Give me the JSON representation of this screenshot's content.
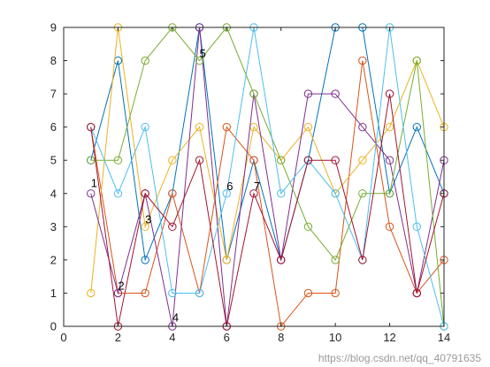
{
  "watermark": "https://blog.csdn.net/qq_40791635",
  "chart_data": {
    "type": "line",
    "marker": "open-circle",
    "grid": false,
    "xlim": [
      0,
      14
    ],
    "ylim": [
      0,
      9
    ],
    "x_ticks": [
      0,
      2,
      4,
      6,
      8,
      10,
      12,
      14
    ],
    "y_ticks": [
      0,
      1,
      2,
      3,
      4,
      5,
      6,
      7,
      8,
      9
    ],
    "x": [
      1,
      2,
      3,
      4,
      5,
      6,
      7,
      8,
      9,
      10,
      11,
      12,
      13,
      14
    ],
    "series": [
      {
        "color": "#0072BD",
        "values": [
          5,
          8,
          2,
          4,
          9,
          2,
          5,
          2,
          5,
          9,
          9,
          4,
          6,
          4
        ]
      },
      {
        "color": "#D95319",
        "values": [
          6,
          1,
          1,
          4,
          1,
          6,
          5,
          0,
          1,
          1,
          8,
          3,
          1,
          2
        ]
      },
      {
        "color": "#EDB120",
        "values": [
          1,
          9,
          3,
          5,
          6,
          2,
          6,
          5,
          6,
          4,
          5,
          6,
          8,
          6
        ]
      },
      {
        "color": "#7E2F8E",
        "values": [
          4,
          1,
          4,
          0,
          9,
          0,
          7,
          2,
          7,
          7,
          6,
          5,
          1,
          5
        ]
      },
      {
        "color": "#77AC30",
        "values": [
          5,
          5,
          8,
          9,
          8,
          9,
          7,
          5,
          3,
          2,
          4,
          4,
          8,
          0
        ]
      },
      {
        "color": "#4DBEEE",
        "values": [
          6,
          4,
          6,
          1,
          1,
          4,
          9,
          4,
          5,
          4,
          2,
          9,
          3,
          0
        ]
      },
      {
        "color": "#A2142F",
        "values": [
          6,
          0,
          4,
          3,
          5,
          0,
          4,
          2,
          5,
          5,
          2,
          7,
          1,
          4
        ]
      }
    ],
    "annotations": [
      {
        "text": "1",
        "x": 1.0,
        "y": 4.2
      },
      {
        "text": "2",
        "x": 2.0,
        "y": 1.1
      },
      {
        "text": "3",
        "x": 3.0,
        "y": 3.1
      },
      {
        "text": "4",
        "x": 4.0,
        "y": 0.15
      },
      {
        "text": "5",
        "x": 5.0,
        "y": 8.1
      },
      {
        "text": "6",
        "x": 6.0,
        "y": 4.1
      },
      {
        "text": "7",
        "x": 7.0,
        "y": 4.1
      }
    ]
  }
}
